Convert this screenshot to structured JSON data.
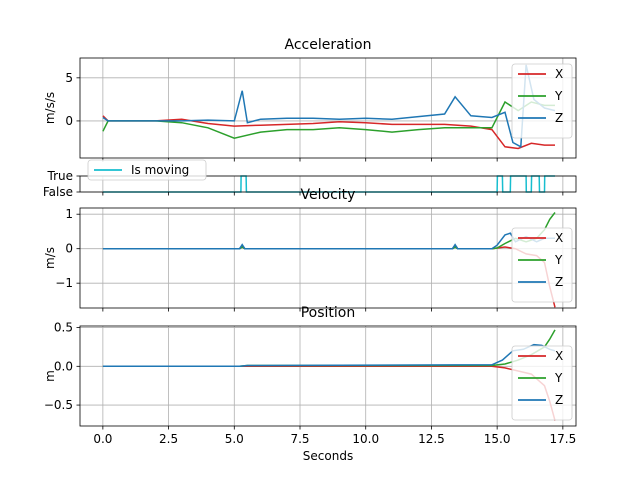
{
  "colors": {
    "x": "#d62728",
    "y": "#2ca02c",
    "z": "#1f77b4",
    "moving": "#17becf",
    "grid": "#b0b0b0"
  },
  "chart_data": [
    {
      "type": "line",
      "title": "Acceleration",
      "ylabel": "m/s/s",
      "xlim": [
        -0.87,
        18.0
      ],
      "ylim": [
        -4.3,
        7.3
      ],
      "yticks": [
        5,
        0
      ],
      "ytick_labels": [
        "5",
        "0"
      ],
      "grid": true,
      "legend": "top-right",
      "series": [
        {
          "name": "X",
          "key": "x",
          "x": [
            0,
            0.2,
            1,
            2,
            3,
            4,
            5,
            6,
            7,
            8,
            9,
            10,
            11,
            12,
            13,
            14,
            14.8,
            15.3,
            15.8,
            16.3,
            16.8,
            17.2
          ],
          "values": [
            0.6,
            0,
            0,
            0,
            0.2,
            -0.3,
            -0.6,
            -0.5,
            -0.4,
            -0.3,
            -0.1,
            -0.2,
            -0.4,
            -0.4,
            -0.4,
            -0.6,
            -1.0,
            -3.0,
            -3.2,
            -2.6,
            -2.8,
            -2.8
          ]
        },
        {
          "name": "Y",
          "key": "y",
          "x": [
            0,
            0.2,
            1,
            2,
            3,
            4,
            5,
            6,
            7,
            8,
            9,
            10,
            11,
            12,
            13,
            14,
            14.8,
            15.3,
            15.8,
            16.3,
            16.8,
            17.2
          ],
          "values": [
            -1.2,
            0,
            0,
            0,
            -0.2,
            -0.8,
            -2.0,
            -1.3,
            -1.0,
            -1.0,
            -0.8,
            -1.0,
            -1.3,
            -1.0,
            -0.8,
            -0.8,
            -0.8,
            2.2,
            1.2,
            2.2,
            1.8,
            1.8
          ]
        },
        {
          "name": "Z",
          "key": "z",
          "x": [
            0,
            0.2,
            1,
            2,
            3,
            4,
            5,
            5.3,
            5.5,
            6,
            7,
            8,
            9,
            10,
            11,
            12,
            13,
            13.4,
            14,
            14.8,
            15.3,
            15.6,
            15.9,
            16.1,
            16.4,
            16.8,
            17.2
          ],
          "values": [
            0.4,
            0,
            0,
            0,
            0,
            0.1,
            0,
            3.5,
            -0.2,
            0.2,
            0.3,
            0.3,
            0.2,
            0.3,
            0.2,
            0.5,
            0.8,
            2.8,
            0.6,
            0.4,
            1.0,
            -2.5,
            -3.0,
            6.5,
            2.5,
            1.5,
            1.2
          ]
        }
      ]
    },
    {
      "type": "line",
      "title": "",
      "ylabel": "",
      "xlim": [
        -0.87,
        18.0
      ],
      "ylim": [
        0,
        1
      ],
      "yticks": [
        1,
        0
      ],
      "ytick_labels": [
        "True",
        "False"
      ],
      "grid": true,
      "legend": "top-left",
      "series": [
        {
          "name": "Is moving",
          "key": "moving",
          "x": [
            0,
            5.25,
            5.26,
            5.45,
            5.46,
            15.0,
            15.01,
            15.2,
            15.21,
            15.5,
            15.51,
            16.1,
            16.11,
            16.3,
            16.31,
            16.6,
            16.61,
            16.8,
            16.81,
            17.2
          ],
          "values": [
            0,
            0,
            1,
            1,
            0,
            0,
            1,
            1,
            0,
            0,
            1,
            1,
            0,
            0,
            1,
            1,
            0,
            0,
            1,
            1
          ]
        }
      ]
    },
    {
      "type": "line",
      "title": "Velocity",
      "ylabel": "m/s",
      "xlim": [
        -0.87,
        18.0
      ],
      "ylim": [
        -1.72,
        1.18
      ],
      "yticks": [
        1,
        0,
        -1
      ],
      "ytick_labels": [
        "1",
        "0",
        "−1"
      ],
      "grid": true,
      "legend": "right",
      "series": [
        {
          "name": "X",
          "key": "x",
          "x": [
            0,
            5.2,
            5.3,
            5.4,
            13.3,
            13.4,
            13.5,
            14.8,
            15.0,
            15.3,
            15.7,
            16.1,
            16.5,
            16.8,
            17.0,
            17.2
          ],
          "values": [
            0,
            0,
            0.1,
            0,
            0,
            0.1,
            0,
            0,
            0.02,
            0.05,
            0,
            -0.15,
            -0.2,
            -0.4,
            -1.1,
            -1.7
          ]
        },
        {
          "name": "Y",
          "key": "y",
          "x": [
            0,
            5.2,
            5.3,
            5.4,
            13.3,
            13.4,
            13.5,
            14.8,
            15.0,
            15.3,
            15.7,
            16.1,
            16.5,
            16.8,
            17.0,
            17.2
          ],
          "values": [
            0,
            0,
            0.05,
            0,
            0,
            0.05,
            0,
            0,
            0.02,
            0.15,
            0.3,
            0.2,
            0.3,
            0.55,
            0.85,
            1.05
          ]
        },
        {
          "name": "Z",
          "key": "z",
          "x": [
            0,
            5.2,
            5.3,
            5.4,
            13.3,
            13.4,
            13.5,
            14.8,
            15.0,
            15.3,
            15.5,
            15.7,
            16.1,
            16.5,
            16.8,
            17.2
          ],
          "values": [
            0,
            0,
            0.12,
            0,
            0,
            0.12,
            0,
            0,
            0.1,
            0.4,
            0.45,
            0.2,
            0.35,
            0.2,
            0.3,
            0.3
          ]
        }
      ]
    },
    {
      "type": "line",
      "title": "Position",
      "ylabel": "m",
      "xlim": [
        -0.87,
        18.0
      ],
      "ylim": [
        -0.77,
        0.52
      ],
      "yticks": [
        0.5,
        0,
        -0.5
      ],
      "ytick_labels": [
        "0.5",
        "0.0",
        "−0.5"
      ],
      "xticks": [
        0,
        2.5,
        5,
        7.5,
        10,
        12.5,
        15,
        17.5
      ],
      "xtick_labels": [
        "0.0",
        "2.5",
        "5.0",
        "7.5",
        "10.0",
        "12.5",
        "15.0",
        "17.5"
      ],
      "xlabel": "Seconds",
      "grid": true,
      "legend": "right",
      "series": [
        {
          "name": "X",
          "key": "x",
          "x": [
            0,
            5.2,
            5.5,
            14.8,
            15.3,
            15.8,
            16.3,
            16.8,
            17.0,
            17.2
          ],
          "values": [
            0,
            0,
            0,
            0,
            -0.02,
            -0.06,
            -0.1,
            -0.25,
            -0.45,
            -0.7
          ]
        },
        {
          "name": "Y",
          "key": "y",
          "x": [
            0,
            5.2,
            5.5,
            14.8,
            15.3,
            15.8,
            16.3,
            16.8,
            17.0,
            17.2
          ],
          "values": [
            0,
            0,
            0.01,
            0.01,
            0.03,
            0.08,
            0.15,
            0.25,
            0.35,
            0.47
          ]
        },
        {
          "name": "Z",
          "key": "z",
          "x": [
            0,
            5.2,
            5.5,
            14.8,
            15.2,
            15.6,
            16.0,
            16.4,
            16.7,
            17.0,
            17.2
          ],
          "values": [
            0.0,
            0.0,
            0.01,
            0.02,
            0.08,
            0.2,
            0.22,
            0.28,
            0.27,
            0.22,
            0.2
          ]
        }
      ]
    }
  ]
}
